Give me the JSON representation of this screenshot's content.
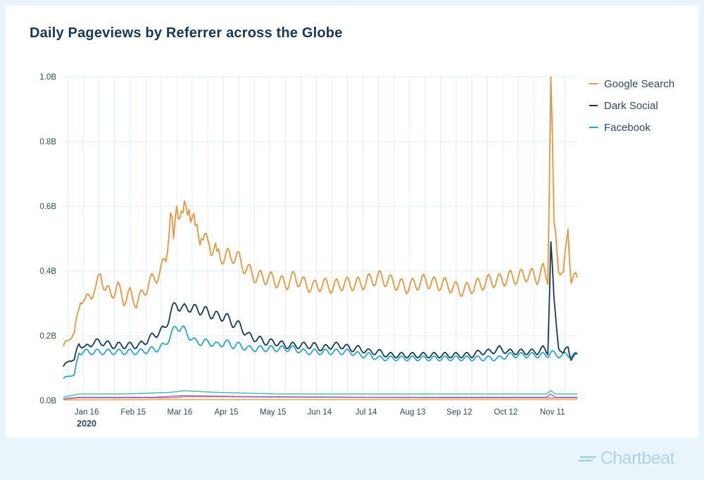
{
  "brand": {
    "name": "Chartbeat"
  },
  "chart_data": {
    "type": "line",
    "title": "Daily Pageviews by Referrer across the Globe",
    "xlabel": "",
    "ylabel": "",
    "ylim": [
      0,
      1.0
    ],
    "y_ticks": [
      "0.0B",
      "0.2B",
      "0.4B",
      "0.6B",
      "0.8B",
      "1.0B"
    ],
    "x_ticks": [
      {
        "day": 16,
        "label": "Jan 16"
      },
      {
        "day": 46,
        "label": "Feb 15"
      },
      {
        "day": 76,
        "label": "Mar 16"
      },
      {
        "day": 106,
        "label": "Apr 15"
      },
      {
        "day": 136,
        "label": "May 15"
      },
      {
        "day": 166,
        "label": "Jun 14"
      },
      {
        "day": 196,
        "label": "Jul 14"
      },
      {
        "day": 226,
        "label": "Aug 13"
      },
      {
        "day": 256,
        "label": "Sep 12"
      },
      {
        "day": 286,
        "label": "Oct 12"
      },
      {
        "day": 316,
        "label": "Nov 11"
      }
    ],
    "x_range": [
      1,
      332
    ],
    "year_label": "2020",
    "grid": true,
    "legend_position": "right",
    "series": [
      {
        "name": "Google Search",
        "color": "#e8963a",
        "points": [
          [
            1,
            0.16
          ],
          [
            5,
            0.2
          ],
          [
            8,
            0.2
          ],
          [
            12,
            0.32
          ],
          [
            15,
            0.3
          ],
          [
            18,
            0.33
          ],
          [
            22,
            0.34
          ],
          [
            25,
            0.4
          ],
          [
            28,
            0.34
          ],
          [
            32,
            0.33
          ],
          [
            36,
            0.35
          ],
          [
            40,
            0.31
          ],
          [
            44,
            0.33
          ],
          [
            48,
            0.3
          ],
          [
            52,
            0.33
          ],
          [
            56,
            0.36
          ],
          [
            60,
            0.38
          ],
          [
            64,
            0.4
          ],
          [
            67,
            0.44
          ],
          [
            70,
            0.58
          ],
          [
            72,
            0.5
          ],
          [
            74,
            0.6
          ],
          [
            78,
            0.58
          ],
          [
            82,
            0.59
          ],
          [
            86,
            0.54
          ],
          [
            90,
            0.5
          ],
          [
            95,
            0.48
          ],
          [
            100,
            0.46
          ],
          [
            105,
            0.44
          ],
          [
            110,
            0.45
          ],
          [
            115,
            0.43
          ],
          [
            120,
            0.4
          ],
          [
            126,
            0.38
          ],
          [
            132,
            0.38
          ],
          [
            138,
            0.37
          ],
          [
            144,
            0.36
          ],
          [
            150,
            0.38
          ],
          [
            156,
            0.36
          ],
          [
            162,
            0.35
          ],
          [
            168,
            0.36
          ],
          [
            174,
            0.35
          ],
          [
            180,
            0.36
          ],
          [
            186,
            0.36
          ],
          [
            192,
            0.36
          ],
          [
            198,
            0.37
          ],
          [
            204,
            0.38
          ],
          [
            210,
            0.37
          ],
          [
            216,
            0.36
          ],
          [
            222,
            0.35
          ],
          [
            228,
            0.36
          ],
          [
            234,
            0.37
          ],
          [
            240,
            0.36
          ],
          [
            246,
            0.36
          ],
          [
            252,
            0.35
          ],
          [
            258,
            0.34
          ],
          [
            264,
            0.35
          ],
          [
            270,
            0.36
          ],
          [
            276,
            0.37
          ],
          [
            282,
            0.37
          ],
          [
            288,
            0.38
          ],
          [
            294,
            0.38
          ],
          [
            300,
            0.39
          ],
          [
            306,
            0.38
          ],
          [
            310,
            0.4
          ],
          [
            313,
            0.38
          ],
          [
            315,
            1.0
          ],
          [
            317,
            0.55
          ],
          [
            320,
            0.42
          ],
          [
            323,
            0.38
          ],
          [
            326,
            0.53
          ],
          [
            328,
            0.38
          ],
          [
            332,
            0.37
          ]
        ]
      },
      {
        "name": "Dark Social",
        "color": "#143a56",
        "points": [
          [
            1,
            0.1
          ],
          [
            5,
            0.13
          ],
          [
            8,
            0.12
          ],
          [
            11,
            0.18
          ],
          [
            15,
            0.16
          ],
          [
            20,
            0.18
          ],
          [
            26,
            0.18
          ],
          [
            32,
            0.17
          ],
          [
            38,
            0.17
          ],
          [
            44,
            0.17
          ],
          [
            50,
            0.17
          ],
          [
            56,
            0.19
          ],
          [
            62,
            0.21
          ],
          [
            66,
            0.22
          ],
          [
            70,
            0.27
          ],
          [
            74,
            0.3
          ],
          [
            78,
            0.28
          ],
          [
            82,
            0.29
          ],
          [
            86,
            0.28
          ],
          [
            90,
            0.28
          ],
          [
            95,
            0.27
          ],
          [
            100,
            0.26
          ],
          [
            105,
            0.26
          ],
          [
            110,
            0.24
          ],
          [
            115,
            0.23
          ],
          [
            120,
            0.2
          ],
          [
            126,
            0.19
          ],
          [
            132,
            0.18
          ],
          [
            138,
            0.18
          ],
          [
            144,
            0.17
          ],
          [
            150,
            0.17
          ],
          [
            156,
            0.17
          ],
          [
            162,
            0.17
          ],
          [
            168,
            0.16
          ],
          [
            174,
            0.17
          ],
          [
            180,
            0.17
          ],
          [
            186,
            0.16
          ],
          [
            192,
            0.16
          ],
          [
            198,
            0.15
          ],
          [
            204,
            0.15
          ],
          [
            210,
            0.14
          ],
          [
            216,
            0.14
          ],
          [
            222,
            0.14
          ],
          [
            228,
            0.14
          ],
          [
            234,
            0.14
          ],
          [
            240,
            0.14
          ],
          [
            246,
            0.14
          ],
          [
            252,
            0.14
          ],
          [
            258,
            0.14
          ],
          [
            264,
            0.14
          ],
          [
            270,
            0.15
          ],
          [
            276,
            0.15
          ],
          [
            282,
            0.16
          ],
          [
            288,
            0.15
          ],
          [
            294,
            0.15
          ],
          [
            300,
            0.15
          ],
          [
            306,
            0.15
          ],
          [
            310,
            0.16
          ],
          [
            313,
            0.15
          ],
          [
            315,
            0.49
          ],
          [
            317,
            0.3
          ],
          [
            320,
            0.17
          ],
          [
            323,
            0.14
          ],
          [
            326,
            0.17
          ],
          [
            328,
            0.13
          ],
          [
            332,
            0.14
          ]
        ]
      },
      {
        "name": "Facebook",
        "color": "#2aa5cf",
        "points": [
          [
            1,
            0.065
          ],
          [
            5,
            0.08
          ],
          [
            8,
            0.075
          ],
          [
            11,
            0.15
          ],
          [
            15,
            0.15
          ],
          [
            20,
            0.15
          ],
          [
            26,
            0.15
          ],
          [
            32,
            0.15
          ],
          [
            38,
            0.15
          ],
          [
            44,
            0.15
          ],
          [
            50,
            0.15
          ],
          [
            56,
            0.155
          ],
          [
            62,
            0.16
          ],
          [
            66,
            0.17
          ],
          [
            70,
            0.2
          ],
          [
            74,
            0.23
          ],
          [
            78,
            0.22
          ],
          [
            82,
            0.2
          ],
          [
            86,
            0.18
          ],
          [
            90,
            0.18
          ],
          [
            95,
            0.18
          ],
          [
            100,
            0.17
          ],
          [
            105,
            0.18
          ],
          [
            110,
            0.17
          ],
          [
            115,
            0.17
          ],
          [
            120,
            0.16
          ],
          [
            126,
            0.16
          ],
          [
            132,
            0.16
          ],
          [
            138,
            0.16
          ],
          [
            144,
            0.16
          ],
          [
            150,
            0.16
          ],
          [
            156,
            0.15
          ],
          [
            162,
            0.15
          ],
          [
            168,
            0.15
          ],
          [
            174,
            0.15
          ],
          [
            180,
            0.15
          ],
          [
            186,
            0.15
          ],
          [
            192,
            0.14
          ],
          [
            198,
            0.14
          ],
          [
            204,
            0.13
          ],
          [
            210,
            0.13
          ],
          [
            216,
            0.13
          ],
          [
            222,
            0.13
          ],
          [
            228,
            0.13
          ],
          [
            234,
            0.13
          ],
          [
            240,
            0.13
          ],
          [
            246,
            0.13
          ],
          [
            252,
            0.13
          ],
          [
            258,
            0.13
          ],
          [
            264,
            0.13
          ],
          [
            270,
            0.13
          ],
          [
            276,
            0.13
          ],
          [
            282,
            0.13
          ],
          [
            288,
            0.14
          ],
          [
            294,
            0.14
          ],
          [
            300,
            0.14
          ],
          [
            306,
            0.14
          ],
          [
            310,
            0.14
          ],
          [
            313,
            0.14
          ],
          [
            315,
            0.15
          ],
          [
            318,
            0.14
          ],
          [
            322,
            0.14
          ],
          [
            326,
            0.14
          ],
          [
            332,
            0.14
          ]
        ]
      },
      {
        "name": "",
        "color": "#3fb7b9",
        "points": [
          [
            1,
            0.01
          ],
          [
            11,
            0.02
          ],
          [
            40,
            0.02
          ],
          [
            70,
            0.025
          ],
          [
            78,
            0.03
          ],
          [
            100,
            0.025
          ],
          [
            140,
            0.02
          ],
          [
            200,
            0.02
          ],
          [
            260,
            0.02
          ],
          [
            312,
            0.02
          ],
          [
            315,
            0.03
          ],
          [
            318,
            0.02
          ],
          [
            332,
            0.02
          ]
        ]
      },
      {
        "name": "",
        "color": "#8e72b8",
        "points": [
          [
            1,
            0.005
          ],
          [
            11,
            0.01
          ],
          [
            60,
            0.01
          ],
          [
            78,
            0.015
          ],
          [
            120,
            0.012
          ],
          [
            200,
            0.01
          ],
          [
            260,
            0.01
          ],
          [
            312,
            0.01
          ],
          [
            315,
            0.02
          ],
          [
            318,
            0.01
          ],
          [
            332,
            0.01
          ]
        ]
      },
      {
        "name": "",
        "color": "#e46d8b",
        "points": [
          [
            1,
            0.004
          ],
          [
            11,
            0.008
          ],
          [
            70,
            0.008
          ],
          [
            80,
            0.012
          ],
          [
            150,
            0.01
          ],
          [
            250,
            0.008
          ],
          [
            332,
            0.008
          ]
        ]
      },
      {
        "name": "",
        "color": "#f0a84d",
        "points": [
          [
            1,
            0.002
          ],
          [
            60,
            0.003
          ],
          [
            200,
            0.003
          ],
          [
            332,
            0.003
          ]
        ]
      }
    ]
  }
}
